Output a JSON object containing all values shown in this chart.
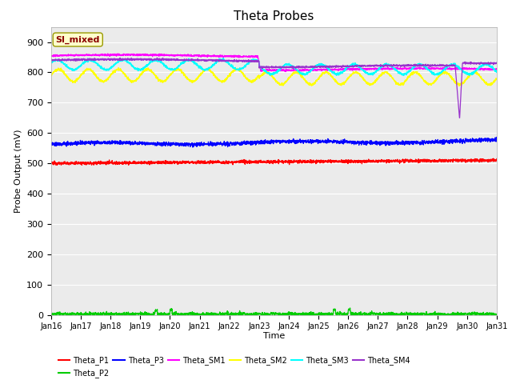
{
  "title": "Theta Probes",
  "xlabel": "Time",
  "ylabel": "Probe Output (mV)",
  "ylim": [
    0,
    950
  ],
  "yticks": [
    0,
    100,
    200,
    300,
    400,
    500,
    600,
    700,
    800,
    900
  ],
  "xtick_labels": [
    "Jan 16",
    "Jan 17",
    "Jan 18",
    "Jan 19",
    "Jan 20",
    "Jan 21",
    "Jan 22",
    "Jan 23",
    "Jan 24",
    "Jan 25",
    "Jan 26",
    "Jan 27",
    "Jan 28",
    "Jan 29",
    "Jan 30",
    "Jan 31"
  ],
  "bg_color": "#ebebeb",
  "annotation_text": "SI_mixed",
  "annotation_color": "#8B0000",
  "annotation_bg": "#ffffcc",
  "annotation_edge": "#999900",
  "series_order": [
    "Theta_P1",
    "Theta_P2",
    "Theta_P3",
    "Theta_SM1",
    "Theta_SM2",
    "Theta_SM3",
    "Theta_SM4"
  ],
  "series": {
    "Theta_P1": {
      "color": "#ff0000"
    },
    "Theta_P2": {
      "color": "#00cc00"
    },
    "Theta_P3": {
      "color": "#0000ff"
    },
    "Theta_SM1": {
      "color": "#ff00ff"
    },
    "Theta_SM2": {
      "color": "#ffff00"
    },
    "Theta_SM3": {
      "color": "#00ffff"
    },
    "Theta_SM4": {
      "color": "#9933cc"
    }
  }
}
